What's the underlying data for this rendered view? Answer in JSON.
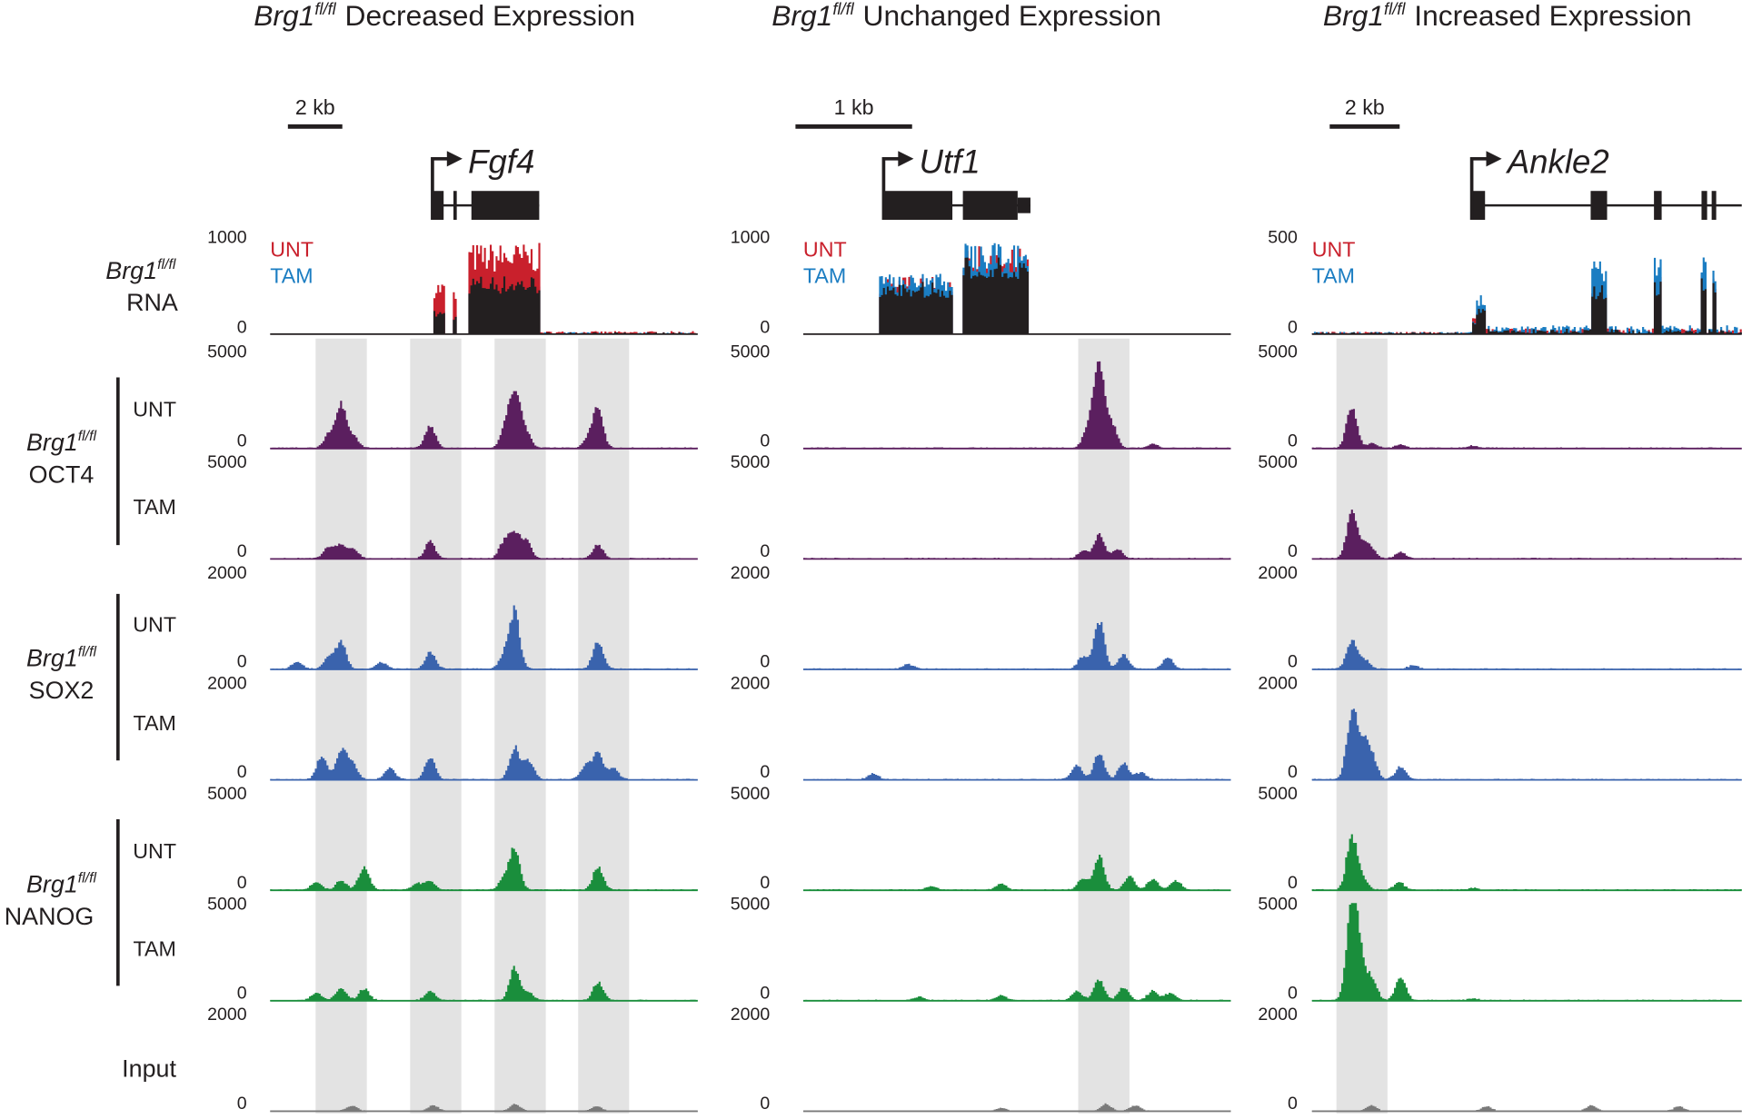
{
  "row_labels": {
    "genotype": "Brg1",
    "genotype_sup": "fl/fl",
    "rna": "RNA",
    "oct4": "OCT4",
    "sox2": "SOX2",
    "nanog": "NANOG",
    "input": "Input",
    "unt": "UNT",
    "tam": "TAM"
  },
  "colors": {
    "rna_unt": "#c9202c",
    "rna_tam": "#1b7dc2",
    "rna_overlap": "#231f20",
    "oct4": "#5b1f5f",
    "sox2": "#3a63ad",
    "nanog": "#1a8e3c",
    "input": "#7a7a7a",
    "highlight": "#e3e3e3"
  },
  "track_ymax": {
    "oct4": "5000",
    "sox2": "2000",
    "nanog": "5000",
    "input": "2000",
    "ymin": "0"
  },
  "chart_data": [
    {
      "type": "area",
      "title": {
        "gene": "Brg1",
        "sup": "fl/fl",
        "text": "Decreased Expression"
      },
      "scale_bar": "2 kb",
      "region_kb": 15.7,
      "gene": {
        "name": "Fgf4",
        "tss_kb": 5.96,
        "exons_kb": [
          [
            5.96,
            6.37
          ],
          [
            6.73,
            6.82
          ],
          [
            7.39,
            9.88
          ]
        ]
      },
      "rna": {
        "ymax": "1000",
        "ymin": "0",
        "legend": [
          "UNT",
          "TAM"
        ],
        "segments": [
          [
            5.96,
            6.4,
            520,
            250
          ],
          [
            6.7,
            6.85,
            430,
            200
          ],
          [
            7.3,
            9.9,
            880,
            620
          ]
        ],
        "background": [
          30,
          20
        ],
        "background_start_kb": 9.9
      },
      "highlights_kb": [
        [
          1.67,
          3.55
        ],
        [
          5.14,
          7.02
        ],
        [
          8.24,
          10.12
        ],
        [
          11.31,
          13.18
        ]
      ],
      "tracks": {
        "oct4_unt": [
          [
            2.61,
            2300
          ],
          [
            2.16,
            700
          ],
          [
            3.06,
            600
          ],
          [
            5.88,
            1200
          ],
          [
            8.98,
            2700
          ],
          [
            8.65,
            1200
          ],
          [
            9.35,
            1000
          ],
          [
            12.04,
            2100
          ],
          [
            11.7,
            500
          ]
        ],
        "oct4_tam": [
          [
            2.16,
            600
          ],
          [
            2.61,
            700
          ],
          [
            3.06,
            500
          ],
          [
            5.88,
            900
          ],
          [
            8.98,
            1300
          ],
          [
            8.6,
            900
          ],
          [
            9.4,
            900
          ],
          [
            12.04,
            700
          ]
        ],
        "sox2_unt": [
          [
            2.61,
            570
          ],
          [
            2.16,
            250
          ],
          [
            5.88,
            350
          ],
          [
            8.98,
            1200
          ],
          [
            8.6,
            300
          ],
          [
            12.04,
            570
          ],
          [
            1.0,
            150
          ],
          [
            4.1,
            150
          ]
        ],
        "sox2_tam": [
          [
            1.9,
            500
          ],
          [
            2.61,
            600
          ],
          [
            3.0,
            350
          ],
          [
            4.4,
            250
          ],
          [
            5.88,
            450
          ],
          [
            8.98,
            680
          ],
          [
            9.5,
            400
          ],
          [
            12.04,
            570
          ],
          [
            11.6,
            300
          ],
          [
            12.6,
            250
          ]
        ],
        "nanog_unt": [
          [
            3.45,
            1250
          ],
          [
            2.61,
            500
          ],
          [
            1.7,
            400
          ],
          [
            5.88,
            450
          ],
          [
            8.98,
            2150
          ],
          [
            8.6,
            600
          ],
          [
            12.04,
            1250
          ],
          [
            5.4,
            350
          ]
        ],
        "nanog_tam": [
          [
            2.61,
            700
          ],
          [
            3.45,
            600
          ],
          [
            1.7,
            400
          ],
          [
            5.88,
            500
          ],
          [
            8.98,
            1700
          ],
          [
            12.04,
            970
          ],
          [
            9.5,
            400
          ]
        ],
        "input": [
          [
            3.0,
            120
          ],
          [
            6.0,
            120
          ],
          [
            9.0,
            150
          ],
          [
            12.0,
            100
          ]
        ]
      }
    },
    {
      "type": "area",
      "title": {
        "gene": "Brg1",
        "sup": "fl/fl",
        "text": "Unchanged Expression"
      },
      "scale_bar": "1 kb",
      "region_kb": 3.67,
      "gene": {
        "name": "Utf1",
        "tss_kb": 0.69,
        "exons_kb": [
          [
            0.69,
            1.28
          ],
          [
            1.37,
            1.84
          ],
          [
            1.84,
            1.95
          ]
        ]
      },
      "rna": {
        "ymax": "1000",
        "ymin": "0",
        "legend": [
          "UNT",
          "TAM"
        ],
        "segments": [
          [
            0.65,
            1.28,
            560,
            600
          ],
          [
            1.37,
            1.94,
            860,
            880
          ]
        ],
        "background": [
          5,
          5
        ],
        "background_start_kb": 1.95
      },
      "highlights_kb": [
        [
          2.36,
          2.8
        ]
      ],
      "tracks": {
        "oct4_unt": [
          [
            2.54,
            4400
          ],
          [
            2.45,
            1200
          ],
          [
            2.65,
            1300
          ],
          [
            3.0,
            200
          ]
        ],
        "oct4_tam": [
          [
            2.54,
            1250
          ],
          [
            2.4,
            400
          ],
          [
            2.7,
            500
          ]
        ],
        "sox2_unt": [
          [
            2.54,
            1020
          ],
          [
            2.4,
            250
          ],
          [
            2.75,
            300
          ],
          [
            3.13,
            250
          ],
          [
            0.9,
            100
          ]
        ],
        "sox2_tam": [
          [
            2.54,
            570
          ],
          [
            2.35,
            300
          ],
          [
            2.75,
            350
          ],
          [
            2.9,
            150
          ],
          [
            0.6,
            120
          ]
        ],
        "nanog_unt": [
          [
            2.54,
            1800
          ],
          [
            2.4,
            600
          ],
          [
            2.8,
            700
          ],
          [
            3.0,
            600
          ],
          [
            3.2,
            500
          ],
          [
            1.7,
            300
          ],
          [
            1.1,
            200
          ]
        ],
        "nanog_tam": [
          [
            2.54,
            1150
          ],
          [
            2.35,
            500
          ],
          [
            2.75,
            700
          ],
          [
            3.0,
            500
          ],
          [
            3.15,
            400
          ],
          [
            1.7,
            250
          ],
          [
            1.0,
            200
          ]
        ],
        "input": [
          [
            1.7,
            60
          ],
          [
            2.6,
            150
          ],
          [
            2.85,
            120
          ]
        ]
      }
    },
    {
      "type": "area",
      "title": {
        "gene": "Brg1",
        "sup": "fl/fl",
        "text": "Increased Expression"
      },
      "scale_bar": "2 kb",
      "region_kb": 12.29,
      "gene": {
        "name": "Ankle2",
        "tss_kb": 4.57,
        "exons_kb": [
          [
            4.57,
            4.95
          ],
          [
            7.97,
            8.44
          ],
          [
            9.78,
            10.0
          ],
          [
            11.14,
            11.3
          ],
          [
            11.43,
            11.56
          ]
        ]
      },
      "rna": {
        "ymax": "500",
        "ymin": "0",
        "legend": [
          "UNT",
          "TAM"
        ],
        "segments": [
          [
            4.57,
            4.7,
            110,
            60
          ],
          [
            4.7,
            4.95,
            150,
            200
          ],
          [
            7.97,
            8.44,
            260,
            380
          ],
          [
            9.78,
            10.0,
            300,
            400
          ],
          [
            11.14,
            11.3,
            330,
            420
          ],
          [
            11.43,
            11.56,
            300,
            380
          ]
        ],
        "background": [
          30,
          45
        ],
        "background_start_kb": 4.57
      },
      "highlights_kb": [
        [
          0.7,
          2.16
        ]
      ],
      "tracks": {
        "oct4_unt": [
          [
            1.14,
            2300
          ],
          [
            1.71,
            250
          ],
          [
            2.54,
            200
          ],
          [
            4.6,
            120
          ]
        ],
        "oct4_tam": [
          [
            1.14,
            2400
          ],
          [
            1.5,
            700
          ],
          [
            1.71,
            400
          ],
          [
            2.54,
            350
          ]
        ],
        "sox2_unt": [
          [
            1.14,
            610
          ],
          [
            1.5,
            200
          ],
          [
            2.9,
            80
          ]
        ],
        "sox2_tam": [
          [
            1.14,
            1430
          ],
          [
            1.45,
            700
          ],
          [
            1.71,
            500
          ],
          [
            2.54,
            280
          ]
        ],
        "nanog_unt": [
          [
            1.14,
            2840
          ],
          [
            1.45,
            600
          ],
          [
            2.5,
            400
          ],
          [
            4.6,
            100
          ]
        ],
        "nanog_tam": [
          [
            1.14,
            5000
          ],
          [
            1.35,
            2200
          ],
          [
            1.71,
            1250
          ],
          [
            2.54,
            1250
          ],
          [
            4.6,
            100
          ]
        ],
        "input": [
          [
            1.7,
            120
          ],
          [
            5.0,
            100
          ],
          [
            8.0,
            120
          ],
          [
            10.5,
            100
          ]
        ]
      }
    }
  ]
}
